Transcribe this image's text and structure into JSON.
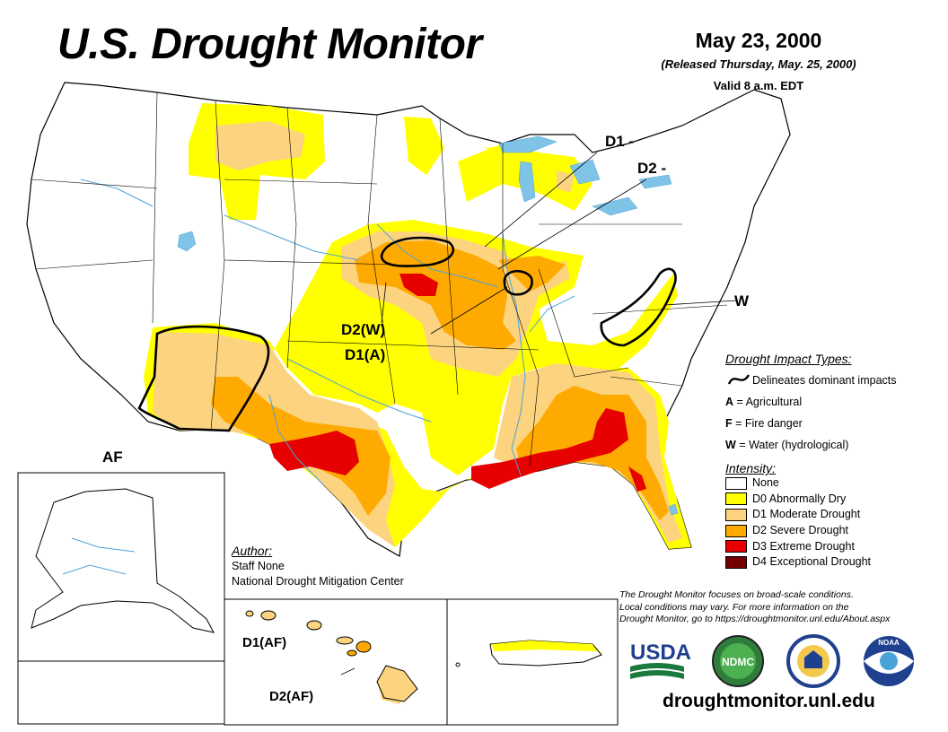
{
  "header": {
    "title": "U.S. Drought Monitor",
    "date": "May 23, 2000",
    "released": "(Released Thursday, May. 25, 2000)",
    "valid": "Valid 8 a.m. EDT"
  },
  "map_labels": {
    "d1": "D1 -",
    "d2": "D2 -",
    "w": "W",
    "d2w": "D2(W)",
    "d1a": "D1(A)",
    "af": "AF",
    "hawaii_d1": "D1(AF)",
    "hawaii_d2": "D2(AF)"
  },
  "impact_types": {
    "title": "Drought Impact Types:",
    "delineates": "Delineates dominant impacts",
    "items": [
      {
        "key": "A",
        "desc": "Agricultural"
      },
      {
        "key": "F",
        "desc": "Fire danger"
      },
      {
        "key": "W",
        "desc": "Water (hydrological)"
      }
    ]
  },
  "intensity": {
    "title": "Intensity:",
    "items": [
      {
        "label": "None",
        "color": "#ffffff"
      },
      {
        "label": "D0 Abnormally Dry",
        "color": "#ffff00"
      },
      {
        "label": "D1 Moderate Drought",
        "color": "#fcd37f"
      },
      {
        "label": "D2 Severe Drought",
        "color": "#ffaa00"
      },
      {
        "label": "D3 Extreme Drought",
        "color": "#e60000"
      },
      {
        "label": "D4 Exceptional Drought",
        "color": "#730000"
      }
    ]
  },
  "author": {
    "heading": "Author:",
    "name": "Staff None",
    "org": "National Drought Mitigation Center"
  },
  "disclaimer": {
    "line1": "The Drought Monitor focuses on broad-scale conditions.",
    "line2": "Local conditions may vary. For more information on the",
    "line3": "Drought Monitor, go to https://droughtmonitor.unl.edu/About.aspx"
  },
  "logos": {
    "usda": "USDA",
    "ndmc": "NDMC",
    "noaa": "NOAA"
  },
  "website": "droughtmonitor.unl.edu",
  "colors": {
    "d0": "#ffff00",
    "d1": "#fcd37f",
    "d2": "#ffaa00",
    "d3": "#e60000",
    "d4": "#730000",
    "water": "#7fc3e6"
  }
}
